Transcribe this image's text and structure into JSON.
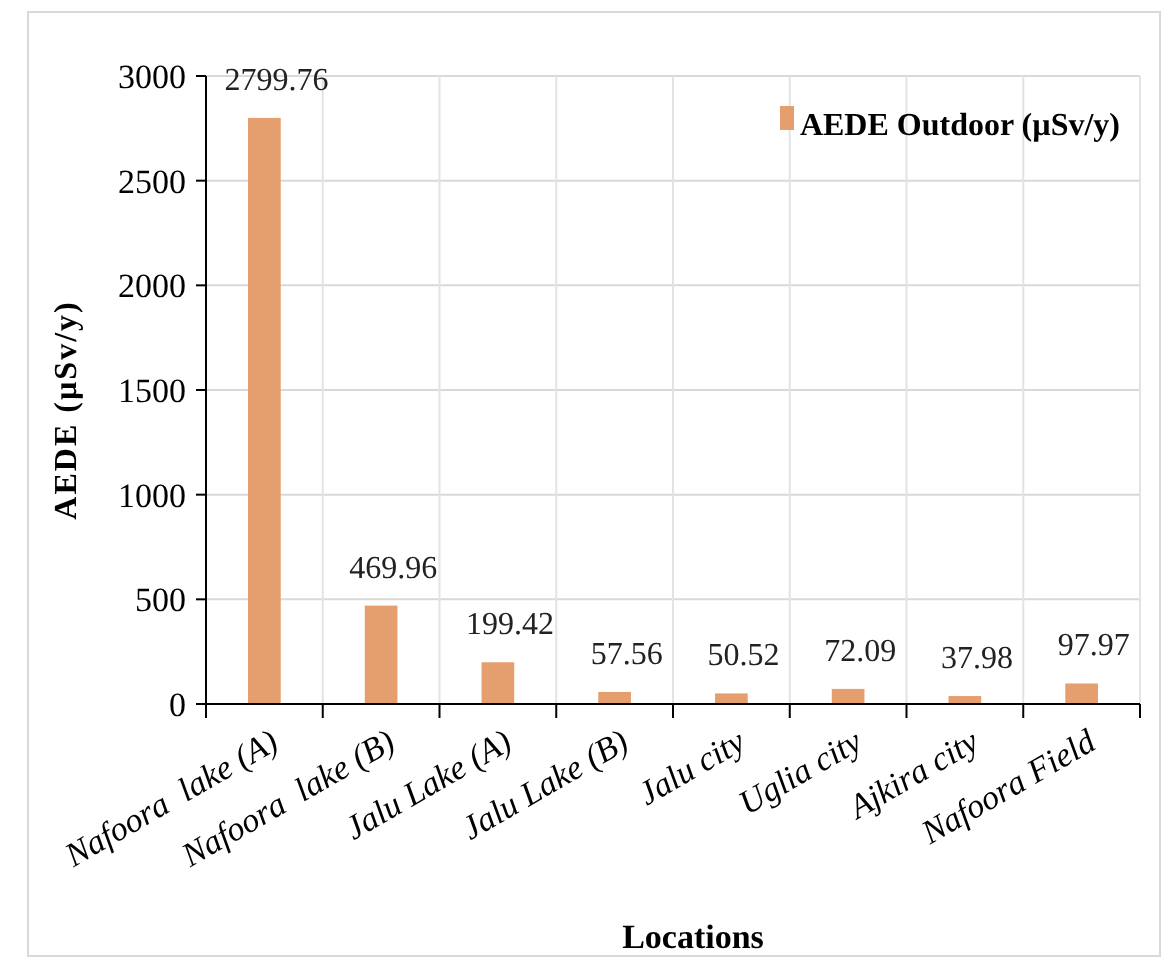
{
  "chart_data": {
    "type": "bar",
    "xlabel": "Locations",
    "ylabel": "AEDE (µSv/y)",
    "categories": [
      "Nafoora  lake (A)",
      "Nafoora  lake (B)",
      "Jalu Lake (A)",
      "Jalu Lake (B)",
      "Jalu city",
      "Uglia city",
      "Ajkira city",
      "Nafoora Field"
    ],
    "series": [
      {
        "name": "AEDE Outdoor (µSv/y)",
        "color": "#e59e6d",
        "values": [
          2799.76,
          469.96,
          199.42,
          57.56,
          50.52,
          72.09,
          37.98,
          97.97
        ]
      }
    ],
    "ylim": [
      0,
      3000
    ],
    "yticks": [
      0,
      500,
      1000,
      1500,
      2000,
      2500,
      3000
    ],
    "grid": true,
    "legend": "top right",
    "data_labels": true
  }
}
